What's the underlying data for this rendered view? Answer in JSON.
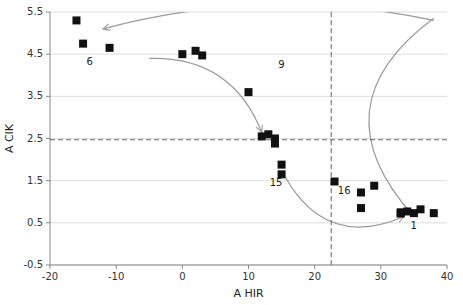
{
  "chart_data": {
    "type": "scatter",
    "title": "",
    "xlabel": "A HIR",
    "ylabel": "A CIK",
    "x": [
      -16,
      -15,
      -11,
      0,
      2,
      3,
      10,
      12,
      13,
      14,
      14,
      15,
      15,
      23,
      27,
      27,
      29,
      33,
      33,
      34,
      35,
      36,
      38
    ],
    "values": [
      5.3,
      4.75,
      4.65,
      4.5,
      4.58,
      4.47,
      3.6,
      2.55,
      2.6,
      2.38,
      2.5,
      1.88,
      1.65,
      1.48,
      1.22,
      0.85,
      1.38,
      0.75,
      0.72,
      0.77,
      0.73,
      0.82,
      0.73
    ],
    "color": "#111111",
    "marker": "square",
    "xlim": [
      -20,
      40
    ],
    "ylim": [
      -0.5,
      5.5
    ],
    "xticks": [
      -20,
      -10,
      0,
      10,
      20,
      30,
      40
    ],
    "yticks": [
      -0.5,
      0.5,
      1.5,
      2.5,
      3.5,
      4.5,
      5.5
    ],
    "grid": "y",
    "hlines": [
      2.47
    ],
    "vlines": [
      22.5
    ],
    "annotations": [
      {
        "text": "6",
        "x": -14.5,
        "y": 4.42
      },
      {
        "text": "9",
        "x": 14.5,
        "y": 4.35
      },
      {
        "text": "15",
        "x": 13.2,
        "y": 1.55
      },
      {
        "text": "16",
        "x": 23.5,
        "y": 1.35
      },
      {
        "text": "1",
        "x": 34.5,
        "y": 0.52
      }
    ],
    "arrows": [
      {
        "x_from": 38,
        "y_from": 5.3,
        "x": -12,
        "y": 5.1
      },
      {
        "x_from": -5,
        "y_from": 4.4,
        "x": 12,
        "y": 2.65
      },
      {
        "x_from": 38,
        "y_from": 5.35,
        "x": 35,
        "y": 0.65
      },
      {
        "x_from": 15.5,
        "y_from": 1.6,
        "x": 33.5,
        "y": 0.65
      }
    ]
  }
}
